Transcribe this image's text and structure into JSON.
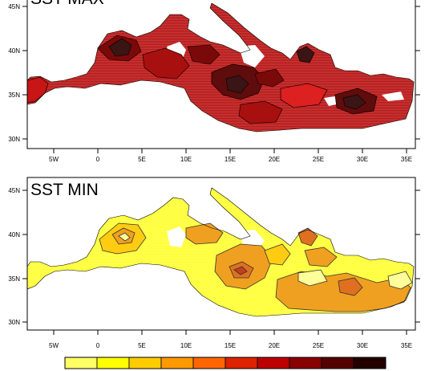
{
  "panels": [
    {
      "title": "SST MAX",
      "lat_ticks": [
        "30N",
        "35N",
        "40N",
        "45N"
      ],
      "lon_ticks": [
        "5W",
        "0",
        "5E",
        "10E",
        "15E",
        "20E",
        "25E",
        "30E",
        "35E"
      ],
      "palette": [
        "#7a0a0a",
        "#a81010",
        "#c81515",
        "#dd2020",
        "#3a1515",
        "#5e0c0c"
      ]
    },
    {
      "title": "SST MIN",
      "lat_ticks": [
        "30N",
        "35N",
        "40N",
        "45N"
      ],
      "lon_ticks": [
        "5W",
        "0",
        "5E",
        "10E",
        "15E",
        "20E",
        "25E",
        "30E",
        "35E"
      ],
      "palette": [
        "#ffff33",
        "#ffcc11",
        "#f0a020",
        "#e07020",
        "#c04020"
      ]
    }
  ],
  "colorbar": {
    "colors": [
      "#ffff66",
      "#ffff00",
      "#ffcc00",
      "#ff9900",
      "#ff6600",
      "#dd2200",
      "#bb0000",
      "#880000",
      "#550000",
      "#220000"
    ]
  }
}
